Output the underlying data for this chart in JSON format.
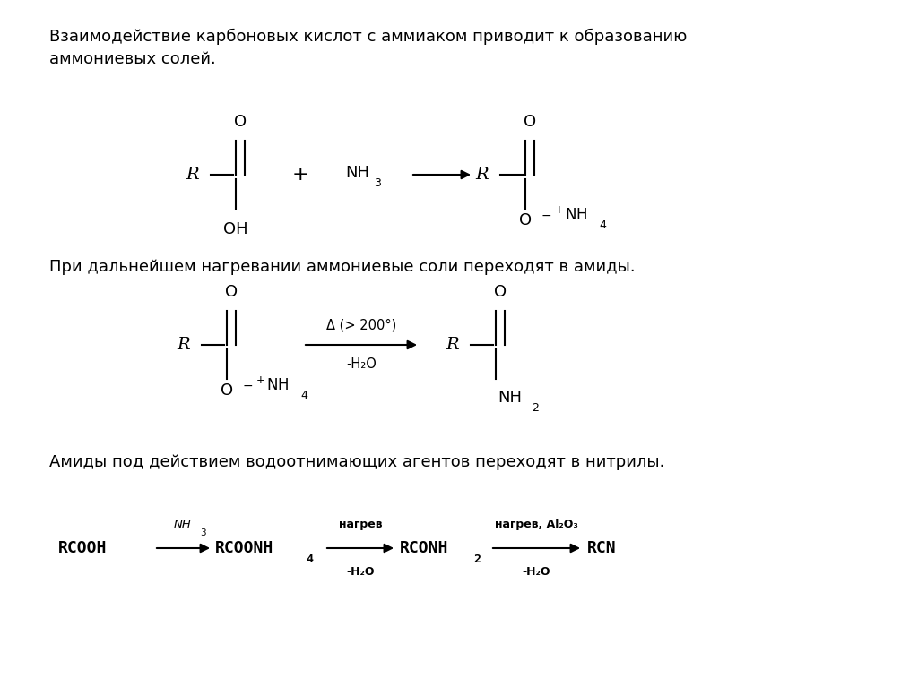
{
  "bg_color": "#ffffff",
  "text_color": "#000000",
  "figsize": [
    10.24,
    7.67
  ],
  "dpi": 100,
  "paragraph1": "Взаимодействие карбоновых кислот с аммиаком приводит к образованию\nаммониевых солей.",
  "paragraph2": "При дальнейшем нагревании аммониевые соли переходят в амиды.",
  "paragraph3": "Амиды под действием водоотнимающих агентов переходят в нитрилы."
}
